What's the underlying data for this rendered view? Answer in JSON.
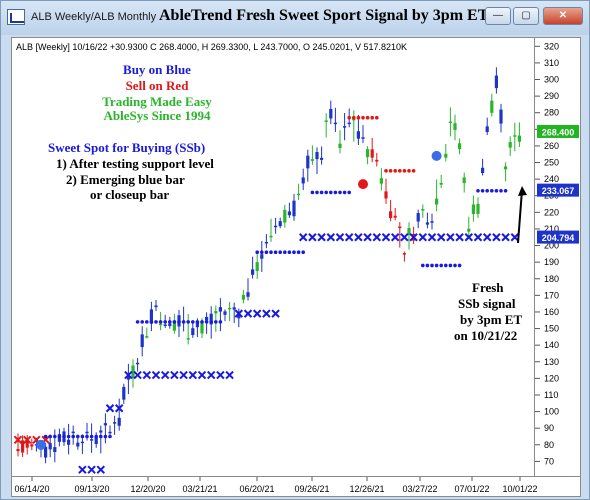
{
  "window": {
    "title": "ALB Weekly/ALB Monthly",
    "chart_heading": "AbleTrend Fresh Sweet Sport Signal by 3pm ET",
    "minimize_label": "—",
    "restore_label": "▢",
    "close_label": "✕"
  },
  "info_line": "ALB [Weekly] 10/16/22 +30.9300 C 268.4000, H 269.3300, L 243.7000, O 245.0201, V 517.8210K",
  "legend": {
    "buy": "Buy on Blue",
    "sell": "Sell on Red",
    "easy": "Trading Made Easy",
    "since": "AbleSys Since 1994"
  },
  "sweet_spot": {
    "title": "Sweet Spot for Buying (SSb)",
    "line1": "1) After testing support level",
    "line2": "2) Emerging blue bar",
    "line3": "or closeup bar"
  },
  "fresh_note": [
    "Fresh",
    "SSb signal",
    "by 3pm ET",
    "on 10/21/22"
  ],
  "colors": {
    "blue": "#1a1adc",
    "red": "#e01818",
    "green": "#2ab52a",
    "price_green": "#22b422",
    "price_blue": "#1e34c8"
  },
  "chart_data": {
    "type": "candlestick",
    "title": "AbleTrend Fresh Sweet Sport Signal by 3pm ET",
    "ylim": [
      60,
      325
    ],
    "yticks": [
      70,
      80,
      90,
      100,
      110,
      120,
      130,
      140,
      150,
      160,
      170,
      180,
      190,
      200,
      210,
      220,
      230,
      240,
      250,
      260,
      270,
      280,
      290,
      300,
      310,
      320
    ],
    "xticks": [
      "06/14/20",
      "09/13/20",
      "12/20/20",
      "03/21/21",
      "06/20/21",
      "09/26/21",
      "12/26/21",
      "03/27/22",
      "07/01/22",
      "10/01/22"
    ],
    "price_labels": [
      {
        "value": 268.4,
        "text": "268.400",
        "color": "#22b422"
      },
      {
        "value": 233.067,
        "text": "233.067",
        "color": "#1e34c8"
      },
      {
        "value": 204.794,
        "text": "204.794",
        "color": "#1e34c8"
      }
    ],
    "x_stop_levels": [
      {
        "from": 0,
        "to": 6,
        "value": 83,
        "color": "red"
      },
      {
        "from": 14,
        "to": 18,
        "value": 65,
        "color": "blue"
      },
      {
        "from": 20,
        "to": 22,
        "value": 102,
        "color": "blue"
      },
      {
        "from": 24,
        "to": 46,
        "value": 122,
        "color": "blue"
      },
      {
        "from": 48,
        "to": 56,
        "value": 159,
        "color": "blue"
      },
      {
        "from": 62,
        "to": 108,
        "value": 205,
        "color": "blue"
      }
    ],
    "dot_levels": [
      {
        "from": 6,
        "to": 20,
        "value": 85,
        "color": "blue"
      },
      {
        "from": 26,
        "to": 44,
        "value": 154,
        "color": "blue"
      },
      {
        "from": 52,
        "to": 62,
        "value": 196,
        "color": "blue"
      },
      {
        "from": 64,
        "to": 72,
        "value": 232,
        "color": "blue"
      },
      {
        "from": 72,
        "to": 78,
        "value": 277,
        "color": "red"
      },
      {
        "from": 80,
        "to": 86,
        "value": 245,
        "color": "red"
      },
      {
        "from": 88,
        "to": 96,
        "value": 188,
        "color": "blue"
      },
      {
        "from": 100,
        "to": 106,
        "value": 233,
        "color": "blue"
      }
    ]
  }
}
